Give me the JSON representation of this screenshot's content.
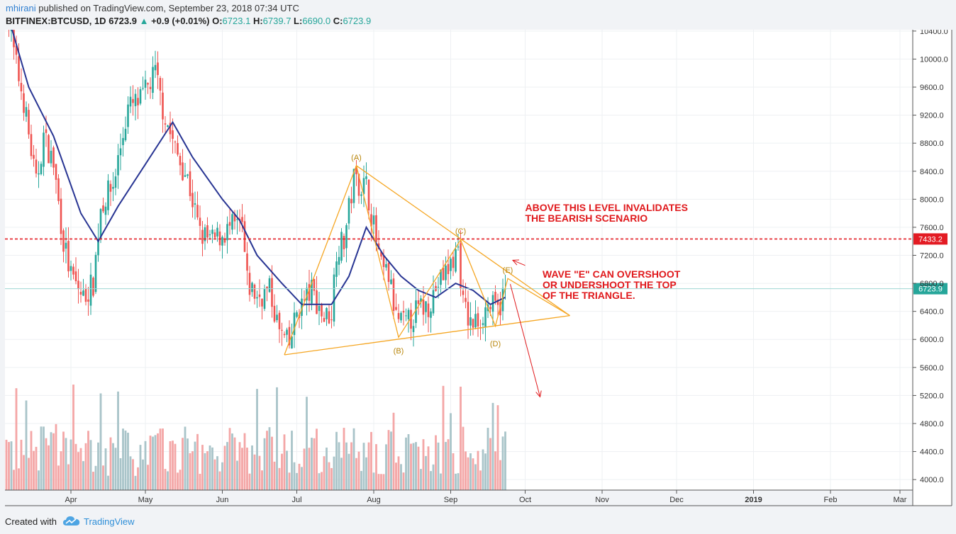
{
  "header": {
    "user": "mhirani",
    "published": "published on TradingView.com, September 23, 2018 07:34 UTC",
    "symbol": "BITFINEX:BTCUSD, 1D",
    "last": "6723.9",
    "change": "+0.9 (+0.01%)",
    "o_label": "O:",
    "o": "6723.1",
    "h_label": "H:",
    "h": "6739.7",
    "l_label": "L:",
    "l": "6690.0",
    "c_label": "C:",
    "c": "6723.9"
  },
  "footer": {
    "created_with": "Created with",
    "brand": "TradingView"
  },
  "colors": {
    "up": "#26a69a",
    "down": "#ef5350",
    "ma": "#283593",
    "triangle": "#f5a623",
    "annotation": "#e0191c",
    "volume_up": "#a9c4c9",
    "volume_down": "#f4a6a6"
  },
  "chart_data": {
    "type": "candlestick",
    "y_axis": {
      "ylim": [
        3850,
        10550
      ],
      "ticks": [
        "10400.0",
        "10000.0",
        "9600.0",
        "9200.0",
        "8800.0",
        "8400.0",
        "8000.0",
        "7600.0",
        "7200.0",
        "6800.0",
        "6400.0",
        "6000.0",
        "5600.0",
        "5200.0",
        "4800.0",
        "4400.0",
        "4000.0"
      ]
    },
    "x_axis": {
      "start": "2018-03-06",
      "end": "2019-03-31",
      "ticks": [
        {
          "label": "Apr",
          "date": "2018-04-01"
        },
        {
          "label": "May",
          "date": "2018-05-01"
        },
        {
          "label": "Jun",
          "date": "2018-06-01"
        },
        {
          "label": "Jul",
          "date": "2018-07-01"
        },
        {
          "label": "Aug",
          "date": "2018-08-01"
        },
        {
          "label": "Sep",
          "date": "2018-09-01"
        },
        {
          "label": "Oct",
          "date": "2018-10-01"
        },
        {
          "label": "Nov",
          "date": "2018-11-01"
        },
        {
          "label": "Dec",
          "date": "2018-12-01"
        },
        {
          "label": "2019",
          "date": "2019-01-01",
          "bold": true
        },
        {
          "label": "Feb",
          "date": "2019-02-01"
        },
        {
          "label": "Mar",
          "date": "2019-03-01"
        }
      ]
    },
    "price_anchors": [
      [
        "2018-03-06",
        10700
      ],
      [
        "2018-03-10",
        9900
      ],
      [
        "2018-03-13",
        9400
      ],
      [
        "2018-03-18",
        8200
      ],
      [
        "2018-03-21",
        8900
      ],
      [
        "2018-03-25",
        8500
      ],
      [
        "2018-03-29",
        7400
      ],
      [
        "2018-04-01",
        6900
      ],
      [
        "2018-04-06",
        6600
      ],
      [
        "2018-04-10",
        6800
      ],
      [
        "2018-04-13",
        7900
      ],
      [
        "2018-04-18",
        8200
      ],
      [
        "2018-04-24",
        9300
      ],
      [
        "2018-04-29",
        9400
      ],
      [
        "2018-05-05",
        9800
      ],
      [
        "2018-05-08",
        9300
      ],
      [
        "2018-05-13",
        8700
      ],
      [
        "2018-05-18",
        8300
      ],
      [
        "2018-05-23",
        7500
      ],
      [
        "2018-05-28",
        7400
      ],
      [
        "2018-06-01",
        7500
      ],
      [
        "2018-06-05",
        7600
      ],
      [
        "2018-06-09",
        7600
      ],
      [
        "2018-06-11",
        6800
      ],
      [
        "2018-06-15",
        6600
      ],
      [
        "2018-06-20",
        6700
      ],
      [
        "2018-06-24",
        6100
      ],
      [
        "2018-06-28",
        5900
      ],
      [
        "2018-07-01",
        6400
      ],
      [
        "2018-07-07",
        6700
      ],
      [
        "2018-07-12",
        6300
      ],
      [
        "2018-07-15",
        6400
      ],
      [
        "2018-07-17",
        7300
      ],
      [
        "2018-07-20",
        7400
      ],
      [
        "2018-07-24",
        8300
      ],
      [
        "2018-07-27",
        8200
      ],
      [
        "2018-07-29",
        8200
      ],
      [
        "2018-08-01",
        7600
      ],
      [
        "2018-08-04",
        7000
      ],
      [
        "2018-08-07",
        6900
      ],
      [
        "2018-08-10",
        6300
      ],
      [
        "2018-08-14",
        6200
      ],
      [
        "2018-08-18",
        6400
      ],
      [
        "2018-08-23",
        6500
      ],
      [
        "2018-08-27",
        6800
      ],
      [
        "2018-08-31",
        7000
      ],
      [
        "2018-09-04",
        7300
      ],
      [
        "2018-09-06",
        6500
      ],
      [
        "2018-09-09",
        6200
      ],
      [
        "2018-09-13",
        6300
      ],
      [
        "2018-09-16",
        6500
      ],
      [
        "2018-09-20",
        6400
      ],
      [
        "2018-09-23",
        6723.9
      ]
    ],
    "moving_average": [
      [
        "2018-03-06",
        10700
      ],
      [
        "2018-03-15",
        9600
      ],
      [
        "2018-03-25",
        8900
      ],
      [
        "2018-04-05",
        7800
      ],
      [
        "2018-04-12",
        7400
      ],
      [
        "2018-04-20",
        7900
      ],
      [
        "2018-05-01",
        8500
      ],
      [
        "2018-05-12",
        9100
      ],
      [
        "2018-05-20",
        8600
      ],
      [
        "2018-06-01",
        8000
      ],
      [
        "2018-06-08",
        7700
      ],
      [
        "2018-06-15",
        7200
      ],
      [
        "2018-06-25",
        6800
      ],
      [
        "2018-07-03",
        6500
      ],
      [
        "2018-07-15",
        6500
      ],
      [
        "2018-07-22",
        6900
      ],
      [
        "2018-07-29",
        7600
      ],
      [
        "2018-08-05",
        7200
      ],
      [
        "2018-08-12",
        6900
      ],
      [
        "2018-08-19",
        6700
      ],
      [
        "2018-08-26",
        6600
      ],
      [
        "2018-09-03",
        6800
      ],
      [
        "2018-09-10",
        6700
      ],
      [
        "2018-09-17",
        6500
      ],
      [
        "2018-09-23",
        6600
      ]
    ],
    "triangle": [
      [
        "2018-06-26",
        5780
      ],
      [
        "2018-07-25",
        8480
      ],
      [
        "2018-08-11",
        6030
      ],
      [
        "2018-09-05",
        7420
      ],
      [
        "2018-09-19",
        6190
      ],
      [
        "2018-09-24",
        6870
      ],
      [
        "2018-10-19",
        6340
      ]
    ],
    "lower_trendline": [
      [
        "2018-06-26",
        5780
      ],
      [
        "2018-10-19",
        6340
      ]
    ],
    "upper_trendline": [
      [
        "2018-07-25",
        8480
      ],
      [
        "2018-10-19",
        6340
      ]
    ],
    "wave_labels": [
      {
        "label": "(A)",
        "date": "2018-07-25",
        "y": 8560,
        "pos": "above"
      },
      {
        "label": "(B)",
        "date": "2018-08-11",
        "y": 5900,
        "pos": "below"
      },
      {
        "label": "(C)",
        "date": "2018-09-05",
        "y": 7510,
        "pos": "above"
      },
      {
        "label": "(D)",
        "date": "2018-09-19",
        "y": 6000,
        "pos": "below"
      },
      {
        "label": "(E)",
        "date": "2018-09-24",
        "y": 6950,
        "pos": "above"
      }
    ],
    "level_line": {
      "value": 7433.2,
      "label": "7433.2"
    },
    "current_price": {
      "value": 6723.9,
      "label": "6723.9"
    },
    "annotations": [
      {
        "lines": [
          "ABOVE THIS LEVEL INVALIDATES",
          "THE BEARISH SCENARIO"
        ],
        "date": "2018-10-01",
        "y": 7830
      },
      {
        "lines": [
          "WAVE \"E\" CAN OVERSHOOT",
          "OR UNDERSHOOT THE TOP",
          "OF THE TRIANGLE."
        ],
        "date": "2018-10-08",
        "y": 6880
      }
    ],
    "arrows": [
      {
        "from": [
          "2018-10-01",
          7055
        ],
        "to": [
          "2018-09-26",
          7130
        ]
      },
      {
        "from": [
          "2018-09-25",
          6790
        ],
        "to": [
          "2018-10-07",
          5180
        ]
      }
    ],
    "volume": {
      "description": "daily volume bars colored by candle direction"
    }
  }
}
